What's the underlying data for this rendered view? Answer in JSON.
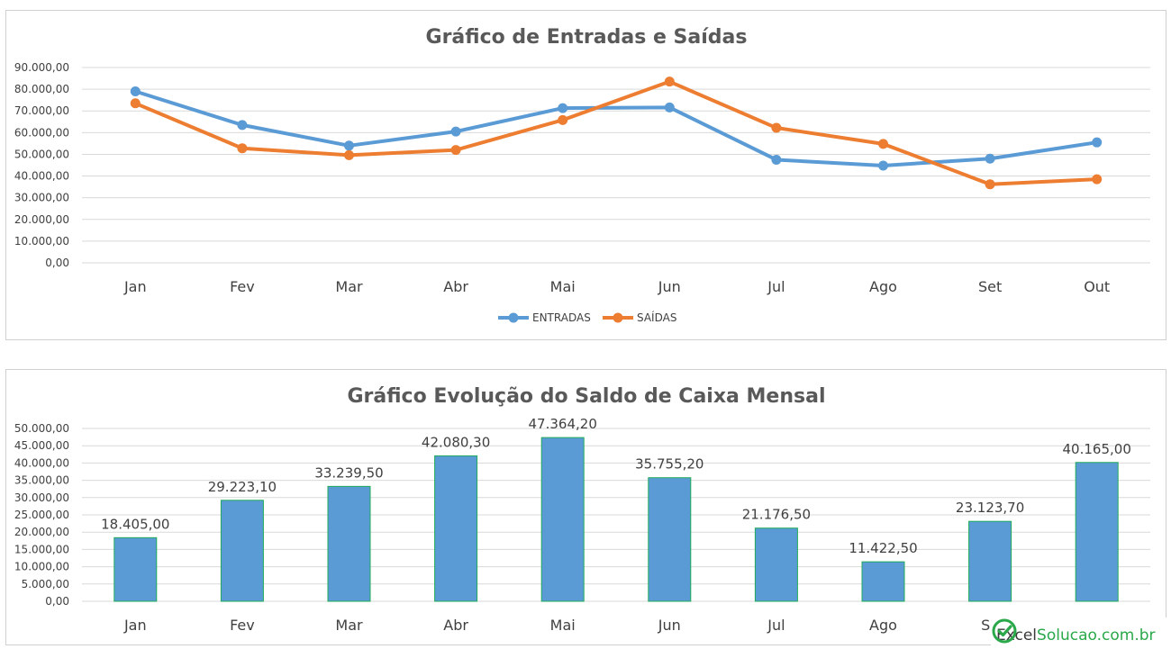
{
  "chart_data": [
    {
      "type": "line",
      "title": "Gráfico de Entradas e Saídas",
      "xlabel": "",
      "ylabel": "",
      "categories": [
        "Jan",
        "Fev",
        "Mar",
        "Abr",
        "Mai",
        "Jun",
        "Jul",
        "Ago",
        "Set",
        "Out"
      ],
      "y_ticks": [
        "0,00",
        "10.000,00",
        "20.000,00",
        "30.000,00",
        "40.000,00",
        "50.000,00",
        "60.000,00",
        "70.000,00",
        "80.000,00",
        "90.000,00"
      ],
      "ylim": [
        0,
        90000
      ],
      "grid": true,
      "legend_position": "bottom",
      "series": [
        {
          "name": "ENTRADAS",
          "color": "#5b9bd5",
          "values": [
            79000,
            63500,
            54000,
            60500,
            71300,
            71600,
            47500,
            44800,
            48000,
            55500
          ]
        },
        {
          "name": "SAÍDAS",
          "color": "#ed7d31",
          "values": [
            73500,
            52800,
            49600,
            52000,
            65800,
            83500,
            62200,
            54800,
            36200,
            38500
          ]
        }
      ]
    },
    {
      "type": "bar",
      "title": "Gráfico Evolução do Saldo de Caixa Mensal",
      "xlabel": "",
      "ylabel": "",
      "categories": [
        "Jan",
        "Fev",
        "Mar",
        "Abr",
        "Mai",
        "Jun",
        "Jul",
        "Ago",
        "Se",
        "Out"
      ],
      "y_ticks": [
        "0,00",
        "5.000,00",
        "10.000,00",
        "15.000,00",
        "20.000,00",
        "25.000,00",
        "30.000,00",
        "35.000,00",
        "40.000,00",
        "45.000,00",
        "50.000,00"
      ],
      "ylim": [
        0,
        50000
      ],
      "grid": true,
      "bar_color": "#5b9bd5",
      "bar_border_color": "#1faa5a",
      "values": [
        18405,
        29223.1,
        33239.5,
        42080.3,
        47364.2,
        35755.2,
        21176.5,
        11422.5,
        23123.7,
        40165
      ],
      "data_labels": [
        "18.405,00",
        "29.223,10",
        "33.239,50",
        "42.080,30",
        "47.364,20",
        "35.755,20",
        "21.176,50",
        "11.422,50",
        "23.123,70",
        "40.165,00"
      ]
    }
  ],
  "watermark": {
    "text_a": "Excel",
    "text_b": "Solucao.com.br",
    "color": "#2aa84a"
  }
}
